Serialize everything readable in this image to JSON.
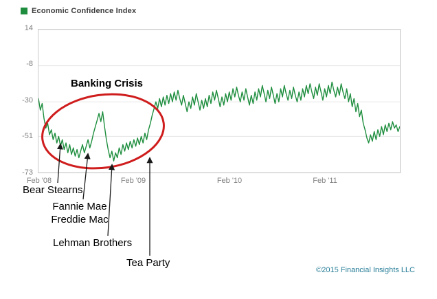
{
  "legend": {
    "label": "Economic Confidence Index",
    "swatch_color": "#1e8e3e"
  },
  "chart_data": {
    "type": "line",
    "title": "Economic Confidence Index",
    "ylim": [
      -73,
      14
    ],
    "yticks": [
      14,
      -8,
      -30,
      -51,
      -73
    ],
    "y_tick_labels": [
      "14",
      "-8",
      "-30",
      "-51",
      "-73"
    ],
    "x_tick_labels": [
      "Feb '08",
      "Feb '09",
      "Feb '10",
      "Feb '11"
    ],
    "x_tick_indices": [
      0,
      52,
      104,
      156
    ],
    "sampling": "weekly values, estimated from plot",
    "grid": true,
    "legend_position": "top-left",
    "line_color": "#1e8e3e",
    "series": [
      {
        "name": "Economic Confidence Index",
        "values": [
          -28,
          -35,
          -31,
          -40,
          -46,
          -43,
          -50,
          -47,
          -53,
          -49,
          -55,
          -51,
          -57,
          -53,
          -59,
          -55,
          -61,
          -56,
          -62,
          -58,
          -63,
          -59,
          -64,
          -60,
          -56,
          -61,
          -57,
          -53,
          -58,
          -54,
          -49,
          -45,
          -41,
          -37,
          -42,
          -36,
          -45,
          -53,
          -59,
          -64,
          -60,
          -66,
          -61,
          -64,
          -58,
          -62,
          -56,
          -60,
          -55,
          -59,
          -54,
          -58,
          -53,
          -57,
          -52,
          -56,
          -51,
          -55,
          -49,
          -53,
          -47,
          -43,
          -38,
          -34,
          -30,
          -34,
          -28,
          -33,
          -27,
          -32,
          -26,
          -31,
          -25,
          -30,
          -24,
          -29,
          -23,
          -28,
          -32,
          -26,
          -31,
          -36,
          -30,
          -34,
          -27,
          -32,
          -25,
          -30,
          -35,
          -29,
          -34,
          -28,
          -33,
          -26,
          -31,
          -24,
          -29,
          -23,
          -28,
          -33,
          -27,
          -32,
          -25,
          -30,
          -24,
          -29,
          -22,
          -27,
          -21,
          -26,
          -30,
          -24,
          -29,
          -22,
          -27,
          -32,
          -26,
          -31,
          -24,
          -29,
          -22,
          -27,
          -20,
          -25,
          -30,
          -23,
          -28,
          -21,
          -26,
          -31,
          -25,
          -30,
          -22,
          -27,
          -20,
          -25,
          -29,
          -23,
          -28,
          -21,
          -26,
          -30,
          -24,
          -29,
          -22,
          -27,
          -20,
          -25,
          -19,
          -24,
          -28,
          -21,
          -26,
          -19,
          -24,
          -29,
          -22,
          -27,
          -20,
          -25,
          -18,
          -23,
          -27,
          -21,
          -26,
          -19,
          -24,
          -28,
          -22,
          -30,
          -25,
          -33,
          -28,
          -36,
          -31,
          -39,
          -35,
          -43,
          -47,
          -52,
          -55,
          -50,
          -54,
          -48,
          -53,
          -47,
          -51,
          -45,
          -50,
          -44,
          -48,
          -43,
          -47,
          -42,
          -46,
          -44,
          -48,
          -45
        ]
      }
    ]
  },
  "annotations": {
    "circle_label": "Banking Crisis",
    "ellipse_color": "#cf1d1d",
    "events": {
      "bear_stearns": "Bear Stearns",
      "fannie_mae": "Fannie Mae",
      "freddie_mac": "Freddie Mac",
      "lehman_brothers": "Lehman Brothers",
      "tea_party": "Tea Party"
    }
  },
  "footer": {
    "copyright": "©2015 Financial Insights LLC",
    "color": "#2a7f99"
  }
}
